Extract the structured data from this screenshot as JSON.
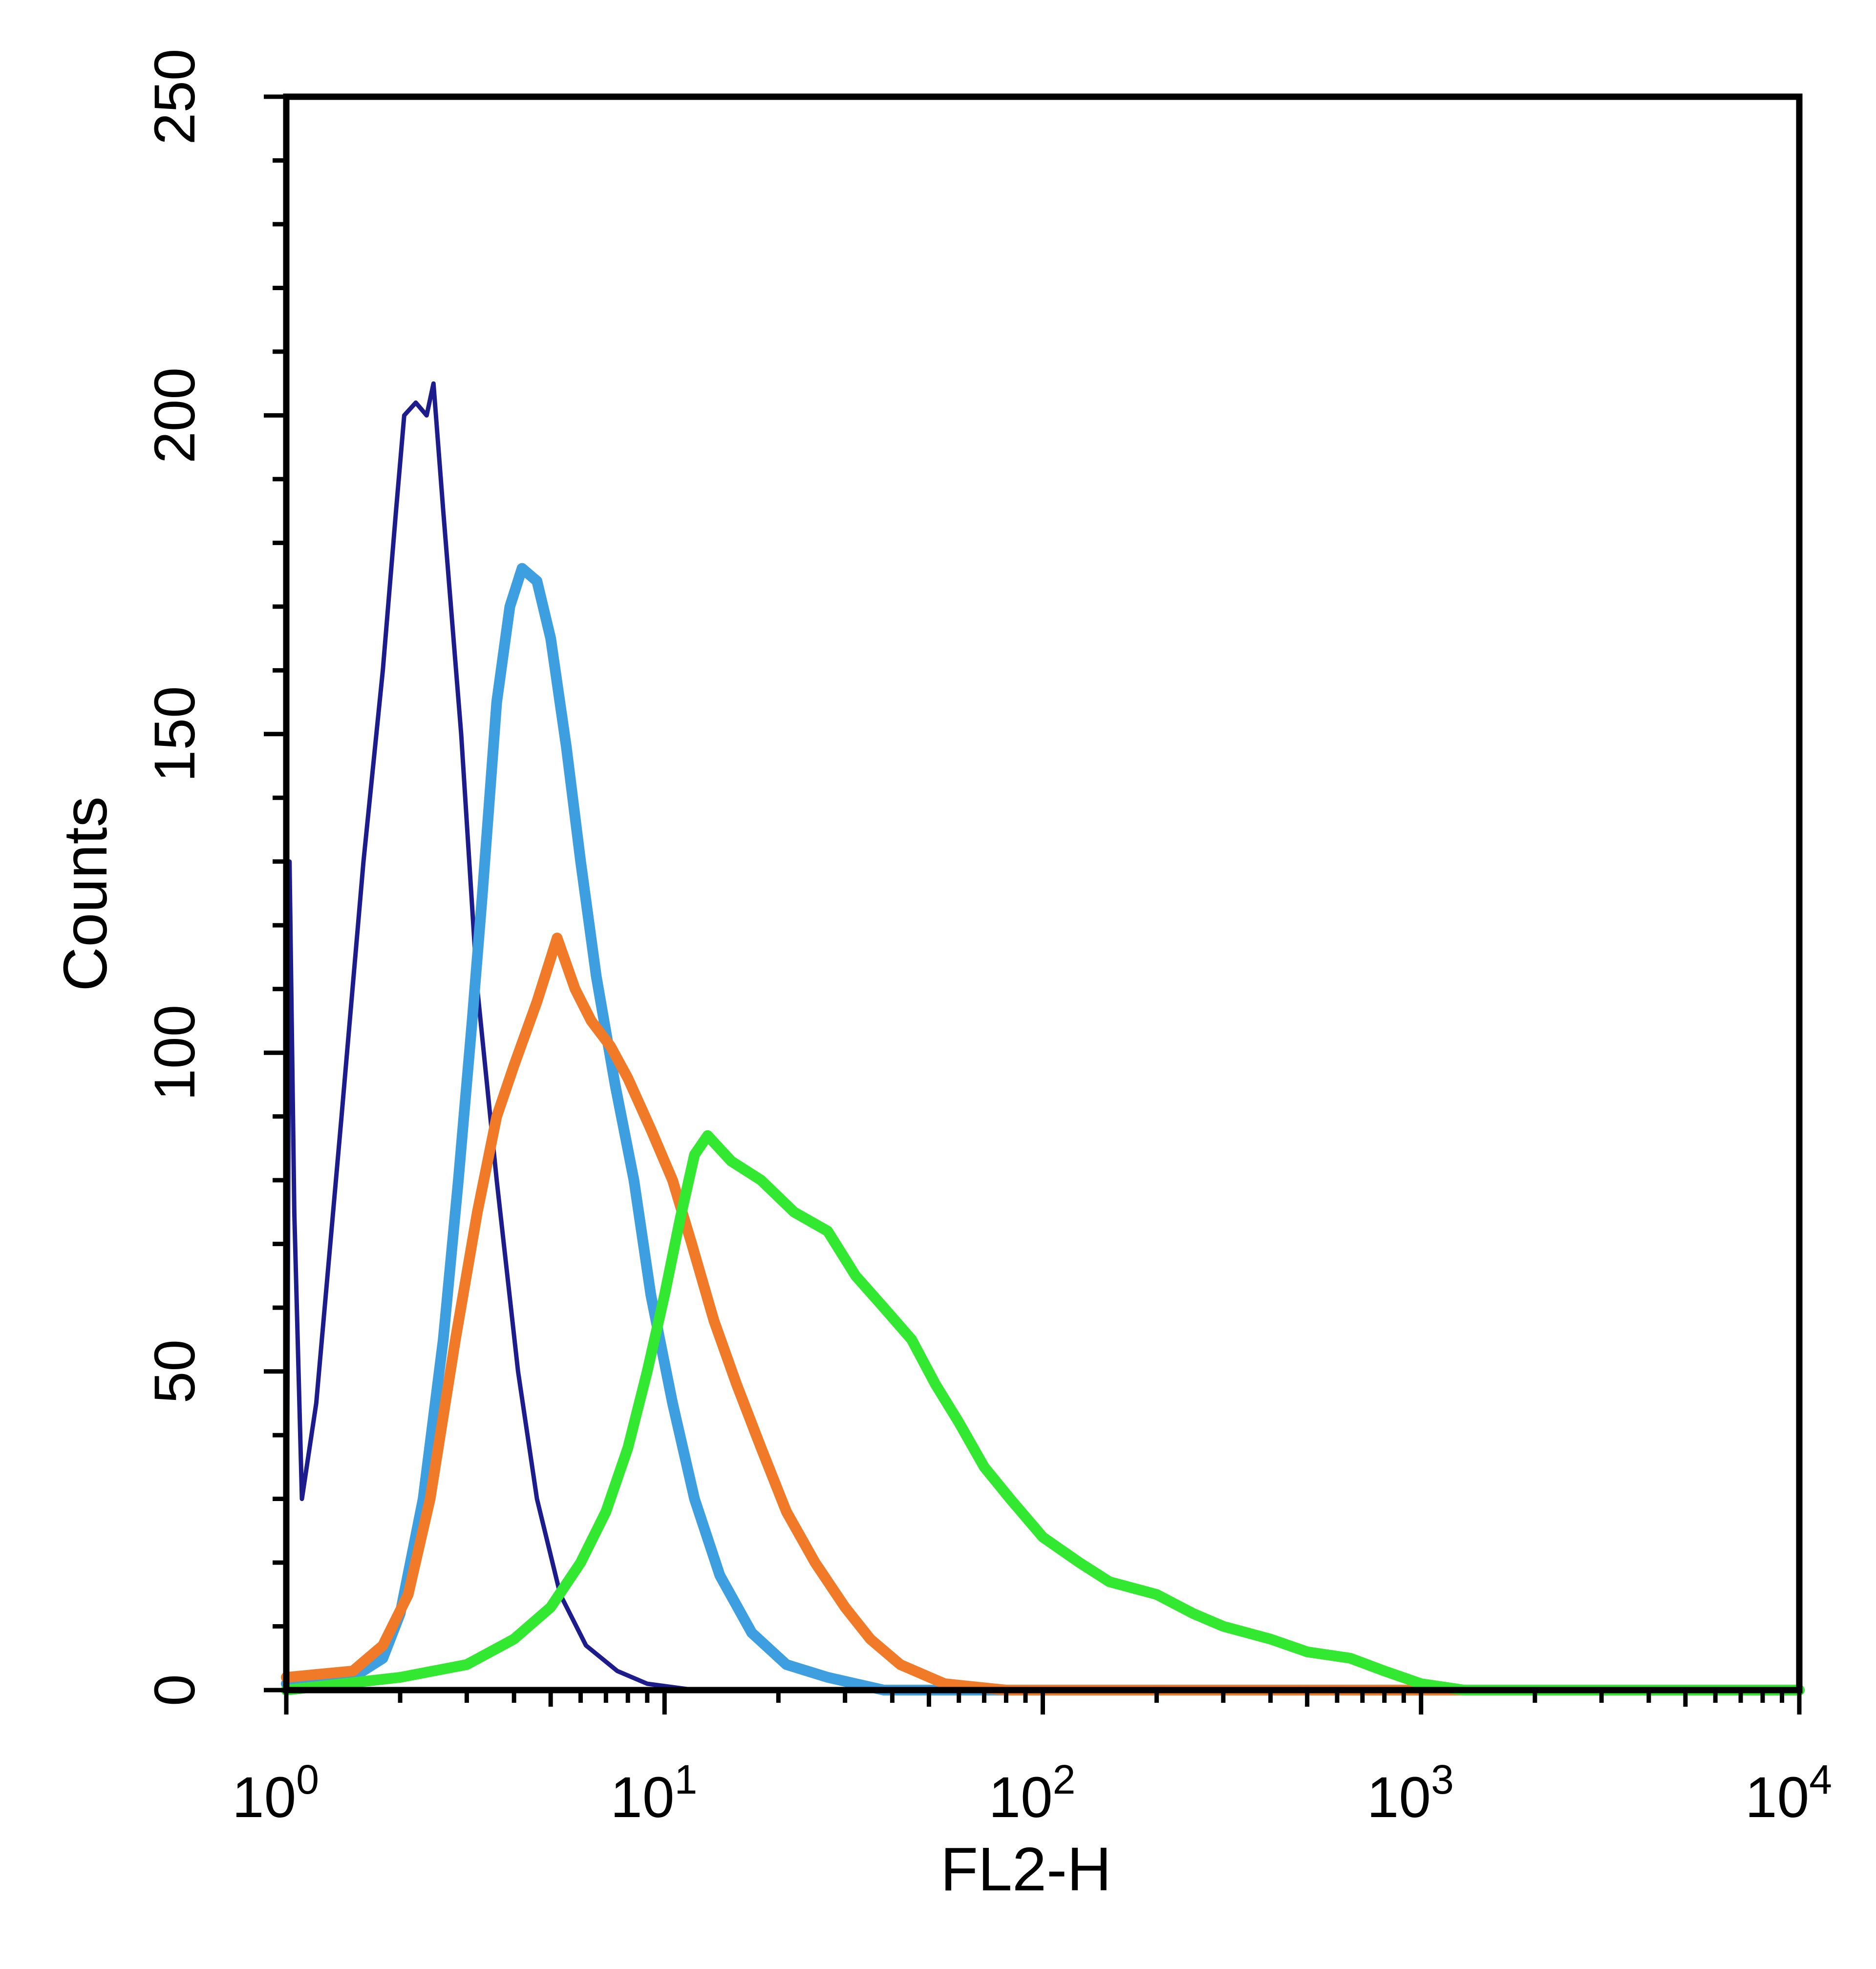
{
  "chart_data": {
    "type": "line",
    "title": "",
    "xlabel": "FL2-H",
    "ylabel": "Counts",
    "x_scale": "log",
    "xlim": [
      1,
      10000
    ],
    "ylim": [
      0,
      250
    ],
    "x_ticks": [
      {
        "base": "10",
        "exp": "0",
        "value": 1
      },
      {
        "base": "10",
        "exp": "1",
        "value": 10
      },
      {
        "base": "10",
        "exp": "2",
        "value": 100
      },
      {
        "base": "10",
        "exp": "3",
        "value": 1000
      },
      {
        "base": "10",
        "exp": "4",
        "value": 10000
      }
    ],
    "y_ticks": [
      "0",
      "50",
      "100",
      "150",
      "200",
      "250"
    ],
    "grid": false,
    "legend": "none",
    "series": [
      {
        "color": "#1c1c8c",
        "points": [
          [
            1,
            0
          ],
          [
            1.02,
            130
          ],
          [
            1.05,
            75
          ],
          [
            1.1,
            30
          ],
          [
            1.2,
            45
          ],
          [
            1.4,
            90
          ],
          [
            1.6,
            130
          ],
          [
            1.8,
            160
          ],
          [
            1.95,
            185
          ],
          [
            2.05,
            200
          ],
          [
            2.2,
            202
          ],
          [
            2.35,
            200
          ],
          [
            2.45,
            205
          ],
          [
            2.6,
            185
          ],
          [
            2.9,
            150
          ],
          [
            3.2,
            110
          ],
          [
            3.6,
            80
          ],
          [
            4.1,
            50
          ],
          [
            4.6,
            30
          ],
          [
            5.3,
            15
          ],
          [
            6.2,
            7
          ],
          [
            7.5,
            3
          ],
          [
            9,
            1
          ],
          [
            12,
            0
          ],
          [
            10000,
            0
          ]
        ]
      },
      {
        "color": "#3d9ee0",
        "points": [
          [
            1,
            1
          ],
          [
            1.5,
            2
          ],
          [
            1.8,
            5
          ],
          [
            2.0,
            12
          ],
          [
            2.3,
            30
          ],
          [
            2.6,
            55
          ],
          [
            2.85,
            80
          ],
          [
            3.1,
            105
          ],
          [
            3.3,
            125
          ],
          [
            3.6,
            155
          ],
          [
            3.9,
            170
          ],
          [
            4.2,
            176
          ],
          [
            4.6,
            174
          ],
          [
            5.0,
            165
          ],
          [
            5.5,
            148
          ],
          [
            6.0,
            130
          ],
          [
            6.6,
            112
          ],
          [
            7.4,
            95
          ],
          [
            8.3,
            80
          ],
          [
            9.2,
            62
          ],
          [
            10.5,
            45
          ],
          [
            12,
            30
          ],
          [
            14,
            18
          ],
          [
            17,
            9
          ],
          [
            21,
            4
          ],
          [
            27,
            2
          ],
          [
            38,
            0
          ],
          [
            10000,
            0
          ]
        ]
      },
      {
        "color": "#f07a28",
        "points": [
          [
            1,
            2
          ],
          [
            1.5,
            3
          ],
          [
            1.8,
            7
          ],
          [
            2.1,
            15
          ],
          [
            2.4,
            30
          ],
          [
            2.8,
            55
          ],
          [
            3.2,
            75
          ],
          [
            3.6,
            90
          ],
          [
            4.0,
            98
          ],
          [
            4.6,
            108
          ],
          [
            5.2,
            118
          ],
          [
            5.8,
            110
          ],
          [
            6.4,
            105
          ],
          [
            7.2,
            101
          ],
          [
            8.0,
            96
          ],
          [
            9.2,
            88
          ],
          [
            10.5,
            80
          ],
          [
            11.8,
            70
          ],
          [
            13.5,
            58
          ],
          [
            15.5,
            48
          ],
          [
            18,
            38
          ],
          [
            21,
            28
          ],
          [
            25,
            20
          ],
          [
            30,
            13
          ],
          [
            35,
            8
          ],
          [
            42,
            4
          ],
          [
            55,
            1
          ],
          [
            80,
            0
          ],
          [
            10000,
            0
          ]
        ]
      },
      {
        "color": "#33e830",
        "points": [
          [
            1,
            0
          ],
          [
            2,
            2
          ],
          [
            3,
            4
          ],
          [
            4,
            8
          ],
          [
            5,
            13
          ],
          [
            6,
            20
          ],
          [
            7,
            28
          ],
          [
            8,
            38
          ],
          [
            9,
            50
          ],
          [
            10,
            62
          ],
          [
            11,
            74
          ],
          [
            12,
            84
          ],
          [
            13,
            87
          ],
          [
            15,
            83
          ],
          [
            18,
            80
          ],
          [
            22,
            75
          ],
          [
            27,
            72
          ],
          [
            32,
            65
          ],
          [
            38,
            60
          ],
          [
            45,
            55
          ],
          [
            52,
            48
          ],
          [
            60,
            42
          ],
          [
            70,
            35
          ],
          [
            82,
            30
          ],
          [
            100,
            24
          ],
          [
            125,
            20
          ],
          [
            150,
            17
          ],
          [
            200,
            15
          ],
          [
            250,
            12
          ],
          [
            300,
            10
          ],
          [
            400,
            8
          ],
          [
            500,
            6
          ],
          [
            650,
            5
          ],
          [
            800,
            3
          ],
          [
            1000,
            1
          ],
          [
            1300,
            0
          ],
          [
            10000,
            0
          ]
        ]
      }
    ]
  }
}
